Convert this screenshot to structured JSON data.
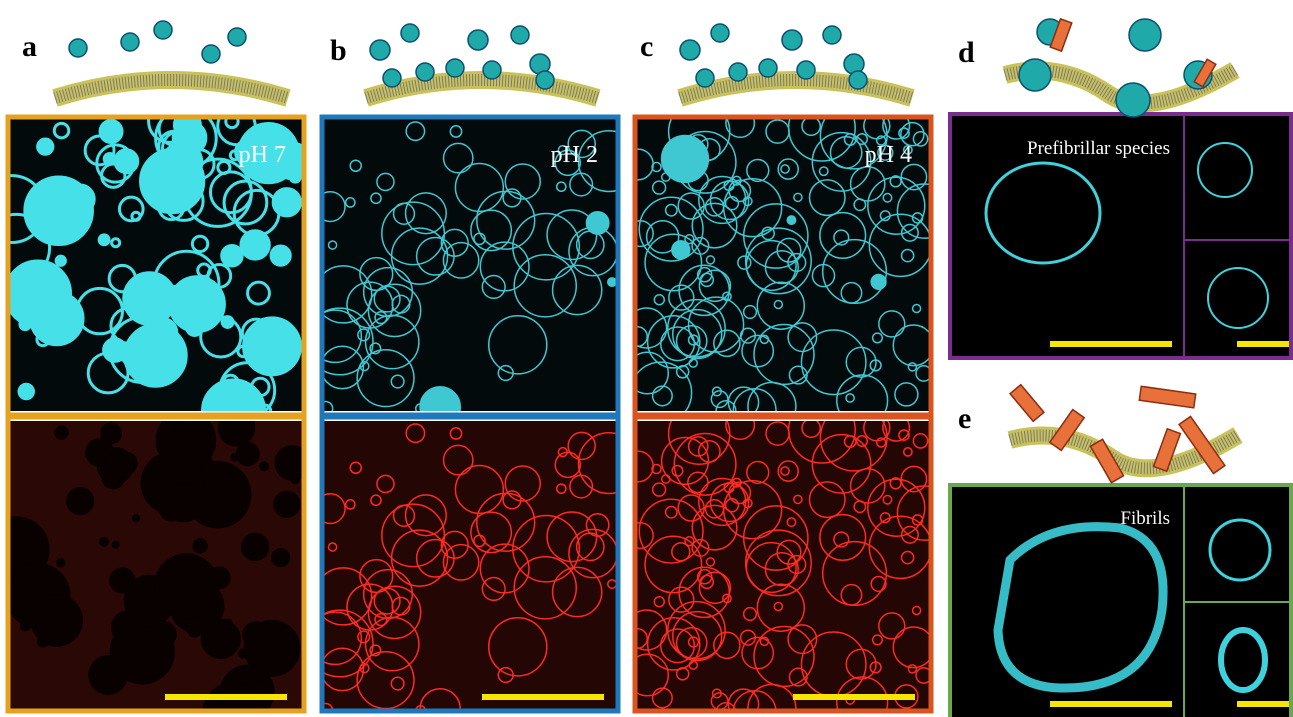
{
  "panels": [
    {
      "label": "a",
      "caption": "pH 7"
    },
    {
      "label": "b",
      "caption": "pH 2"
    },
    {
      "label": "c",
      "caption": "pH 4"
    },
    {
      "label": "d",
      "caption": "Prefibrillar species"
    },
    {
      "label": "e",
      "caption": "Fibrils"
    }
  ]
}
